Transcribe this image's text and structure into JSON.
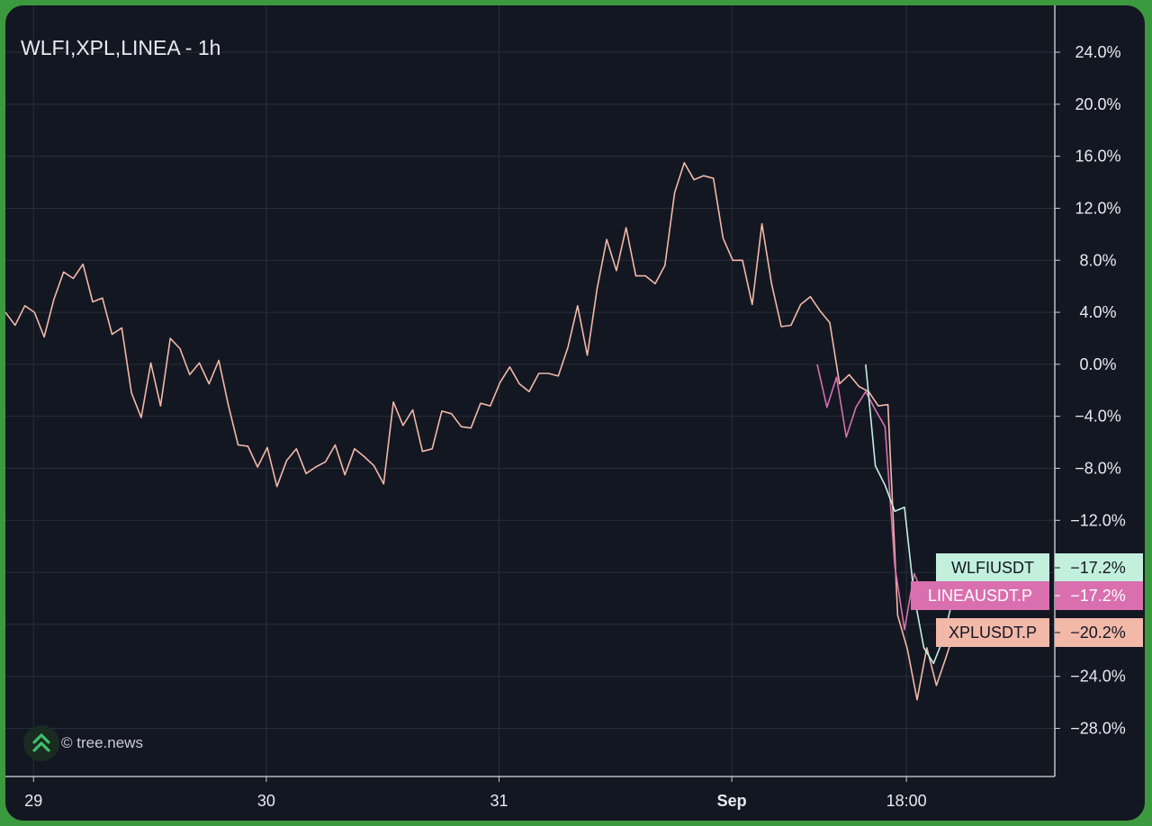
{
  "chart": {
    "title": "WLFI,XPL,LINEA - 1h",
    "watermark": "© tree.news",
    "watermark_icon": "tree-news-logo-icon"
  },
  "colors": {
    "background": "#131722",
    "grid": "#2a2e39",
    "axis_text": "#e8eaef",
    "XPL": "#f2b8a8",
    "LINEA": "#d96fae",
    "WLFI": "#c2f0dd"
  },
  "chart_data": {
    "type": "line",
    "title": "WLFI,XPL,LINEA - 1h",
    "x_unit": "hours (1h bars) from 29 Aug 00:00",
    "x_ticks": [
      {
        "x": 0,
        "label": "29",
        "bold": false
      },
      {
        "x": 24,
        "label": "30",
        "bold": false
      },
      {
        "x": 48,
        "label": "31",
        "bold": false
      },
      {
        "x": 72,
        "label": "Sep",
        "bold": true
      },
      {
        "x": 90,
        "label": "18:00",
        "bold": false
      }
    ],
    "xlim": [
      -2.9,
      105.3
    ],
    "ylim": [
      -31.7,
      27.6
    ],
    "y_ticks": [
      24,
      20,
      16,
      12,
      8,
      4,
      0,
      -4,
      -8,
      -12,
      -16,
      -20,
      -24,
      -28
    ],
    "y_tick_labels": [
      "24.0%",
      "20.0%",
      "16.0%",
      "12.0%",
      "8.0%",
      "4.0%",
      "0.0%",
      "−4.0%",
      "−8.0%",
      "−12.0%",
      "−16.0%",
      "−20.0%",
      "−24.0%",
      "−28.0%"
    ],
    "grid": true,
    "series": [
      {
        "name": "XPLUSDT.P",
        "color": "#f2b8a8",
        "last_value_label": "−20.2%",
        "last_value": -20.2,
        "x0": -2.9,
        "values": [
          4.0,
          3.0,
          4.5,
          4.0,
          2.1,
          5.0,
          7.1,
          6.6,
          7.7,
          4.8,
          5.1,
          2.3,
          2.8,
          -2.2,
          -4.1,
          0.1,
          -3.2,
          2.0,
          1.2,
          -0.8,
          0.1,
          -1.5,
          0.3,
          -3.2,
          -6.2,
          -6.3,
          -7.9,
          -6.4,
          -9.4,
          -7.4,
          -6.5,
          -8.4,
          -7.9,
          -7.5,
          -6.2,
          -8.5,
          -6.5,
          -7.1,
          -7.8,
          -9.2,
          -2.9,
          -4.7,
          -3.5,
          -6.7,
          -6.5,
          -3.6,
          -3.8,
          -4.8,
          -4.9,
          -3.0,
          -3.2,
          -1.4,
          -0.2,
          -1.5,
          -2.1,
          -0.7,
          -0.7,
          -0.9,
          1.3,
          4.5,
          0.7,
          5.8,
          9.6,
          7.2,
          10.5,
          6.8,
          6.8,
          6.2,
          7.6,
          13.2,
          15.5,
          14.2,
          14.5,
          14.3,
          9.7,
          8.0,
          8.0,
          4.6,
          10.8,
          6.2,
          2.9,
          3.0,
          4.6,
          5.2,
          4.1,
          3.2,
          -1.5,
          -0.8,
          -1.7,
          -2.1,
          -3.2,
          -3.1,
          -19.3,
          -21.9,
          -25.8,
          -21.8,
          -24.7,
          -22.5,
          -20.2
        ]
      },
      {
        "name": "LINEAUSDT.P",
        "color": "#d96fae",
        "last_value_label": "−17.2%",
        "last_value": -17.2,
        "x0": 80.8,
        "values": [
          0.0,
          -3.3,
          -1.0,
          -5.6,
          -3.3,
          -2.1,
          -3.5,
          -4.8,
          -15.5,
          -20.4,
          -16.1,
          -17.8,
          -17.2
        ]
      },
      {
        "name": "WLFIUSDT",
        "color": "#c2f0dd",
        "last_value_label": "−17.2%",
        "last_value": -17.2,
        "x0": 85.8,
        "values": [
          0.0,
          -7.8,
          -9.3,
          -11.3,
          -11.0,
          -17.8,
          -21.8,
          -23.0,
          -21.1,
          -18.0,
          -17.2
        ]
      }
    ]
  }
}
